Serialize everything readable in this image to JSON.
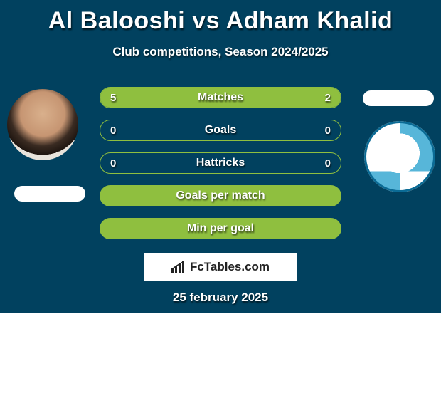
{
  "colors": {
    "card_bg": "#01415f",
    "accent": "#8fbf3f",
    "text": "#ffffff",
    "brand_bg": "#ffffff",
    "brand_text": "#222222"
  },
  "header": {
    "title": "Al Balooshi vs Adham Khalid",
    "subtitle": "Club competitions, Season 2024/2025"
  },
  "players": {
    "left": {
      "name": "Al Balooshi",
      "avatar_kind": "photo"
    },
    "right": {
      "name": "Adham Khalid",
      "avatar_kind": "club-badge"
    }
  },
  "rows": [
    {
      "label": "Matches",
      "left": "5",
      "right": "2",
      "left_pct": 71,
      "right_pct": 29
    },
    {
      "label": "Goals",
      "left": "0",
      "right": "0",
      "left_pct": 0,
      "right_pct": 0
    },
    {
      "label": "Hattricks",
      "left": "0",
      "right": "0",
      "left_pct": 0,
      "right_pct": 0
    },
    {
      "label": "Goals per match",
      "left": "",
      "right": "",
      "left_pct": 100,
      "right_pct": 0,
      "full": true
    },
    {
      "label": "Min per goal",
      "left": "",
      "right": "",
      "left_pct": 100,
      "right_pct": 0,
      "full": true
    }
  ],
  "brand": {
    "text": "FcTables.com",
    "icon": "bar-chart-icon"
  },
  "date": "25 february 2025"
}
